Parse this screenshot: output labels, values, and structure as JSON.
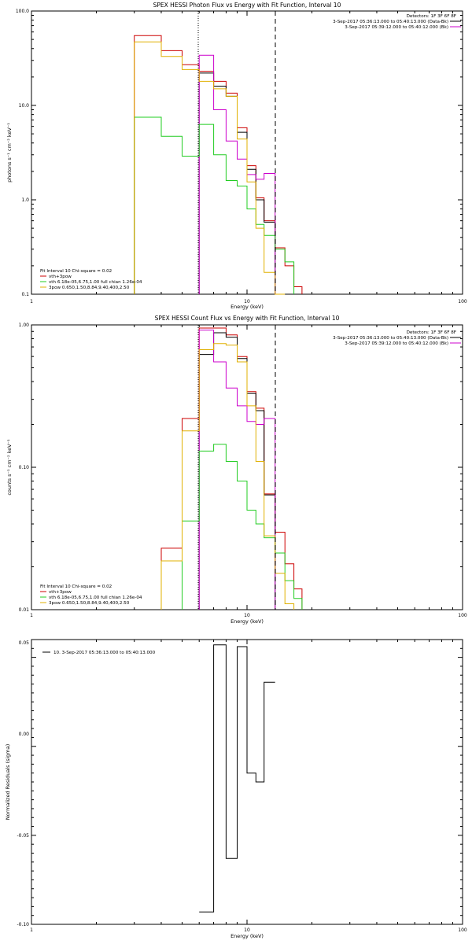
{
  "panels": [
    {
      "id": "photon",
      "title": "SPEX HESSI Photon Flux vs Energy with Fit Function, Interval 10",
      "xlabel": "Energy (keV)",
      "ylabel": "photons s⁻¹ cm⁻² keV⁻¹",
      "x_ticks": [
        "1",
        "10",
        "100"
      ],
      "y_ticks": [
        "0.1",
        "1.0",
        "10.0",
        "100.0"
      ],
      "header_lines": [
        "Detectors: 1F 3F 6F 8F",
        "3-Sep-2017 05:36:13.000 to 05:40:13.000 (Data-Bk)",
        "3-Sep-2017 05:39:12.000 to 05:40:12.000 (Bk)"
      ],
      "legend_lines": [
        "Fit Interval 10   Chi-square = 0.02",
        "vth+3pow",
        "vth 6.18e-05,6.75,1.00  full chian 1.26e-04",
        "3pow 0.650,1.50,8.84,9.40,400,2.50"
      ]
    },
    {
      "id": "count",
      "title": "SPEX HESSI Count Flux vs Energy with Fit Function, Interval 10",
      "xlabel": "Energy (keV)",
      "ylabel": "counts s⁻¹ cm⁻² keV⁻¹",
      "x_ticks": [
        "1",
        "10",
        "100"
      ],
      "y_ticks": [
        "0.01",
        "0.10",
        "1.00"
      ],
      "header_lines": [
        "Detectors: 1F 3F 6F 8F",
        "3-Sep-2017 05:36:13.000 to 05:40:13.000 (Data-Bk)",
        "3-Sep-2017 05:39:12.000 to 05:40:12.000 (Bk)"
      ],
      "legend_lines": [
        "Fit Interval 10   Chi-square = 0.02",
        "vth+3pow",
        "vth 6.18e-05,6.75,1.00  full chian 1.26e-04",
        "3pow 0.650,1.50,8.84,9.40,400,2.50"
      ]
    },
    {
      "id": "residuals",
      "title": "",
      "xlabel": "Energy (keV)",
      "ylabel": "Normalized Residuals (sigma)",
      "x_ticks": [
        "1",
        "10",
        "100"
      ],
      "y_ticks": [
        "-0.10",
        "-0.05",
        "0.00",
        "0.05"
      ],
      "header_lines": [],
      "legend_lines": [
        "10.  3-Sep-2017 05:36:13.000 to 05:40:13.000"
      ]
    }
  ],
  "colors": {
    "data": "#000000",
    "total_fit": "#cc0000",
    "background": "#cc00cc",
    "thermal": "#22cc22",
    "power_law": "#e0b000"
  },
  "chart_data": [
    {
      "type": "line",
      "panel": "photon",
      "x_scale": "log",
      "y_scale": "log",
      "xlim": [
        1,
        100
      ],
      "ylim": [
        0.1,
        100
      ],
      "fit_range_keV": [
        6.0,
        13.5
      ],
      "energy_bin_edges": [
        3.0,
        4.0,
        5.0,
        6.0,
        7.0,
        8.0,
        9.0,
        10.0,
        11.0,
        12.0,
        13.5,
        15.0,
        16.5,
        18.0
      ],
      "series": [
        {
          "name": "vth+3pow",
          "color_key": "total_fit",
          "values": [
            55,
            38,
            27,
            23,
            18,
            13.5,
            5.8,
            2.3,
            1.05,
            0.6,
            0.31,
            0.2,
            0.12
          ]
        },
        {
          "name": "",
          "color_key": "data",
          "values": [
            null,
            null,
            null,
            22,
            16,
            12.5,
            5.2,
            2.1,
            1.0,
            0.58,
            null,
            null,
            null
          ]
        },
        {
          "name": "",
          "color_key": "background",
          "values": [
            null,
            null,
            null,
            34,
            9.0,
            4.2,
            2.7,
            1.85,
            1.65,
            1.9,
            null,
            null,
            null
          ]
        },
        {
          "name": "vth 6.18e-05,6.75,1.00  full chian 1.26e-04",
          "color_key": "thermal",
          "values": [
            7.5,
            4.7,
            2.9,
            6.3,
            3.0,
            1.6,
            1.4,
            0.8,
            0.55,
            0.42,
            0.3,
            0.22,
            null
          ]
        },
        {
          "name": "3pow 0.650,1.50,8.84,9.40,400,2.50",
          "color_key": "power_law",
          "values": [
            47,
            33,
            24,
            18,
            15,
            12.5,
            4.4,
            1.55,
            0.5,
            0.17,
            0.1,
            null,
            null
          ]
        }
      ]
    },
    {
      "type": "line",
      "panel": "count",
      "x_scale": "log",
      "y_scale": "log",
      "xlim": [
        1,
        100
      ],
      "ylim": [
        0.01,
        1
      ],
      "fit_range_keV": [
        6.0,
        13.5
      ],
      "energy_bin_edges": [
        4.0,
        5.0,
        6.0,
        7.0,
        8.0,
        9.0,
        10.0,
        11.0,
        12.0,
        13.5,
        15.0,
        16.5,
        18.0
      ],
      "series": [
        {
          "name": "vth+3pow",
          "color_key": "total_fit",
          "values": [
            0.027,
            0.22,
            0.95,
            0.95,
            0.85,
            0.6,
            0.34,
            0.26,
            0.065,
            0.035,
            0.021,
            0.014
          ]
        },
        {
          "name": "",
          "color_key": "data",
          "values": [
            null,
            null,
            0.62,
            0.88,
            0.82,
            0.58,
            0.33,
            0.25,
            0.064,
            null,
            null,
            null
          ]
        },
        {
          "name": "",
          "color_key": "background",
          "values": [
            null,
            null,
            0.92,
            0.55,
            0.36,
            0.27,
            0.21,
            0.2,
            0.22,
            null,
            null,
            null
          ]
        },
        {
          "name": "vth 6.18e-05,6.75,1.00  full chian 1.26e-04",
          "color_key": "thermal",
          "values": [
            null,
            0.042,
            0.13,
            0.145,
            0.11,
            0.08,
            0.05,
            0.04,
            0.032,
            0.025,
            0.016,
            0.012
          ]
        },
        {
          "name": "3pow 0.650,1.50,8.84,9.40,400,2.50",
          "color_key": "power_law",
          "values": [
            0.022,
            0.18,
            0.67,
            0.74,
            0.72,
            0.55,
            0.27,
            0.11,
            0.033,
            0.018,
            0.011,
            null
          ]
        }
      ]
    },
    {
      "type": "line",
      "panel": "residuals",
      "x_scale": "log",
      "y_scale": "linear",
      "xlim": [
        1,
        100
      ],
      "ylim": [
        -0.1,
        0.06
      ],
      "energy_bin_edges": [
        6.0,
        7.0,
        8.0,
        9.0,
        10.0,
        11.0,
        12.0,
        13.5
      ],
      "series": [
        {
          "name": "10.  3-Sep-2017 05:36:13.000 to 05:40:13.000",
          "color_key": "data",
          "values": [
            -0.093,
            0.057,
            -0.063,
            0.056,
            -0.015,
            -0.02,
            0.036
          ]
        }
      ]
    }
  ]
}
